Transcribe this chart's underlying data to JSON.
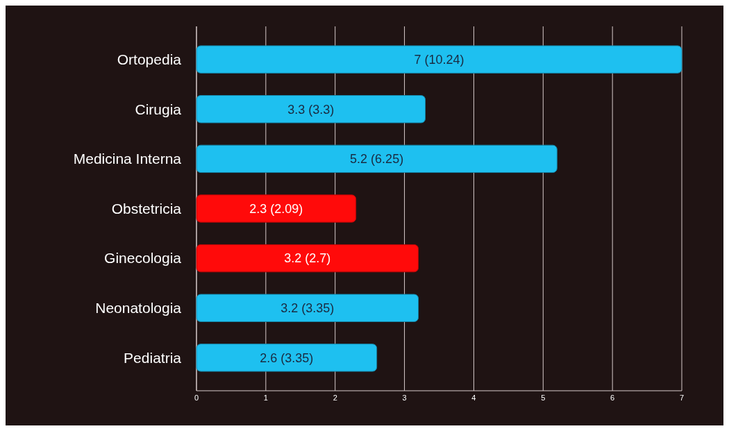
{
  "chart_data": {
    "type": "bar",
    "orientation": "horizontal",
    "categories": [
      "Ortopedia",
      "Cirugia",
      "Medicina Interna",
      "Obstetricia",
      "Ginecologia",
      "Neonatologia",
      "Pediatria"
    ],
    "values": [
      7,
      3.3,
      5.2,
      2.3,
      3.2,
      3.2,
      2.6
    ],
    "colors": [
      "#1ec0f0",
      "#1ec0f0",
      "#1ec0f0",
      "#ff0a0a",
      "#ff0a0a",
      "#1ec0f0",
      "#1ec0f0"
    ],
    "value_labels": [
      "7 (10.24)",
      "3.3 (3.3)",
      "5.2 (6.25)",
      "2.3 (2.09)",
      "3.2 (2.7)",
      "3.2 (3.35)",
      "2.6 (3.35)"
    ],
    "xlim": [
      0,
      7
    ],
    "xticks": [
      0,
      1,
      2,
      3,
      4,
      5,
      6,
      7
    ],
    "grid": "x"
  }
}
